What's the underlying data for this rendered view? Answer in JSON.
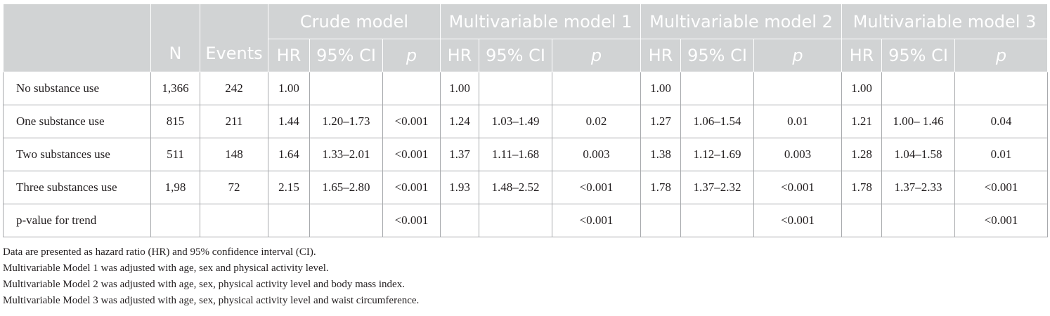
{
  "table": {
    "group_headers": [
      "Crude model",
      "Multivariable model 1",
      "Multivariable model 2",
      "Multivariable model 3"
    ],
    "sub_headers": {
      "n": "N",
      "events": "Events",
      "hr": "HR",
      "ci": "95% CI",
      "p": "p"
    },
    "rows": [
      {
        "label": "No substance use",
        "n": "1,366",
        "events": "242",
        "cells": [
          "1.00",
          "",
          "",
          "1.00",
          "",
          "",
          "1.00",
          "",
          "",
          "1.00",
          "",
          ""
        ]
      },
      {
        "label": "One substance use",
        "n": "815",
        "events": "211",
        "cells": [
          "1.44",
          "1.20–1.73",
          "<0.001",
          "1.24",
          "1.03–1.49",
          "0.02",
          "1.27",
          "1.06–1.54",
          "0.01",
          "1.21",
          "1.00– 1.46",
          "0.04"
        ]
      },
      {
        "label": "Two substances use",
        "n": "511",
        "events": "148",
        "cells": [
          "1.64",
          "1.33–2.01",
          "<0.001",
          "1.37",
          "1.11–1.68",
          "0.003",
          "1.38",
          "1.12–1.69",
          "0.003",
          "1.28",
          "1.04–1.58",
          "0.01"
        ]
      },
      {
        "label": "Three substances use",
        "n": "1,98",
        "events": "72",
        "cells": [
          "2.15",
          "1.65–2.80",
          "<0.001",
          "1.93",
          "1.48–2.52",
          "<0.001",
          "1.78",
          "1.37–2.32",
          "<0.001",
          "1.78",
          "1.37–2.33",
          "<0.001"
        ]
      },
      {
        "label": "p-value for trend",
        "n": "",
        "events": "",
        "cells": [
          "",
          "",
          "<0.001",
          "",
          "",
          "<0.001",
          "",
          "",
          "<0.001",
          "",
          "",
          "<0.001"
        ]
      }
    ]
  },
  "notes": [
    "Data are presented as hazard ratio (HR) and 95% confidence interval (CI).",
    "Multivariable Model 1 was adjusted with age, sex and physical activity level.",
    "Multivariable Model 2 was adjusted with age, sex, physical activity level and body mass index.",
    "Multivariable Model 3 was adjusted with age, sex, physical activity level and waist circumference."
  ],
  "colors": {
    "header_bg": "#d1d3d4",
    "header_text": "#ffffff",
    "grid": "#a7a9ac",
    "body_text": "#231f20"
  }
}
